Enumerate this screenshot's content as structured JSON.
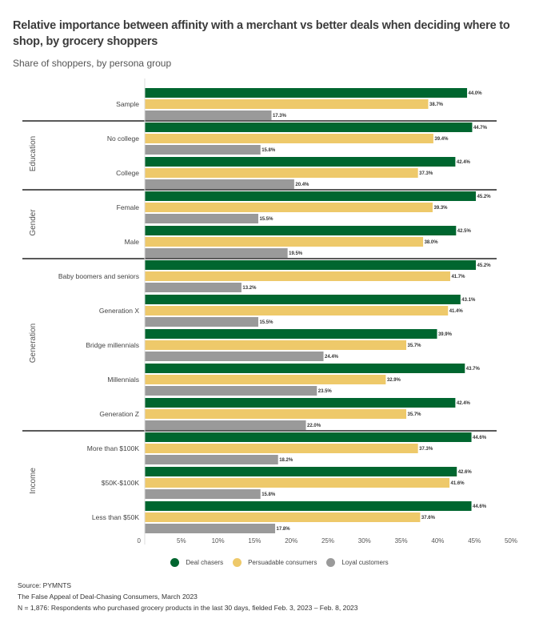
{
  "header": {
    "title": "Relative importance between affinity with a merchant vs better deals when deciding where to shop, by grocery shoppers",
    "subtitle": "Share of shoppers, by persona group"
  },
  "legend": [
    {
      "name": "Deal chasers",
      "color": "#00662f"
    },
    {
      "name": "Persuadable consumers",
      "color": "#eec96a"
    },
    {
      "name": "Loyal customers",
      "color": "#9a9a9a"
    }
  ],
  "footer": {
    "source": "Source: PYMNTS",
    "report": "The False Appeal of Deal-Chasing Consumers, March 2023",
    "note": "N = 1,876: Respondents who purchased grocery products in the last 30 days, fielded Feb. 3, 2023 – Feb. 8, 2023"
  },
  "chart_data": {
    "type": "bar",
    "orientation": "horizontal",
    "title": "Relative importance between affinity with a merchant vs better deals when deciding where to shop, by grocery shoppers",
    "subtitle": "Share of shoppers, by persona group",
    "xlabel": "",
    "ylabel": "",
    "xlim": [
      0,
      50
    ],
    "x_ticks": [
      "0",
      "5%",
      "10%",
      "15%",
      "20%",
      "25%",
      "30%",
      "35%",
      "40%",
      "45%",
      "50%"
    ],
    "grid": false,
    "legend_position": "bottom",
    "series_names": [
      "Deal chasers",
      "Persuadable consumers",
      "Loyal customers"
    ],
    "groups": [
      {
        "name": "",
        "categories": [
          {
            "label": "Sample",
            "values": [
              44.0,
              38.7,
              17.3
            ]
          }
        ]
      },
      {
        "name": "Education",
        "categories": [
          {
            "label": "No college",
            "values": [
              44.7,
              39.4,
              15.8
            ]
          },
          {
            "label": "College",
            "values": [
              42.4,
              37.3,
              20.4
            ]
          }
        ]
      },
      {
        "name": "Gender",
        "categories": [
          {
            "label": "Female",
            "values": [
              45.2,
              39.3,
              15.5
            ]
          },
          {
            "label": "Male",
            "values": [
              42.5,
              38.0,
              19.5
            ]
          }
        ]
      },
      {
        "name": "Generation",
        "categories": [
          {
            "label": "Baby boomers and seniors",
            "values": [
              45.2,
              41.7,
              13.2
            ]
          },
          {
            "label": "Generation X",
            "values": [
              43.1,
              41.4,
              15.5
            ]
          },
          {
            "label": "Bridge millennials",
            "values": [
              39.9,
              35.7,
              24.4
            ]
          },
          {
            "label": "Millennials",
            "values": [
              43.7,
              32.9,
              23.5
            ]
          },
          {
            "label": "Generation Z",
            "values": [
              42.4,
              35.7,
              22.0
            ]
          }
        ]
      },
      {
        "name": "Income",
        "categories": [
          {
            "label": "More than $100K",
            "values": [
              44.6,
              37.3,
              18.2
            ]
          },
          {
            "label": "$50K-$100K",
            "values": [
              42.6,
              41.6,
              15.8
            ]
          },
          {
            "label": "Less than $50K",
            "values": [
              44.6,
              37.6,
              17.8
            ]
          }
        ]
      }
    ]
  }
}
